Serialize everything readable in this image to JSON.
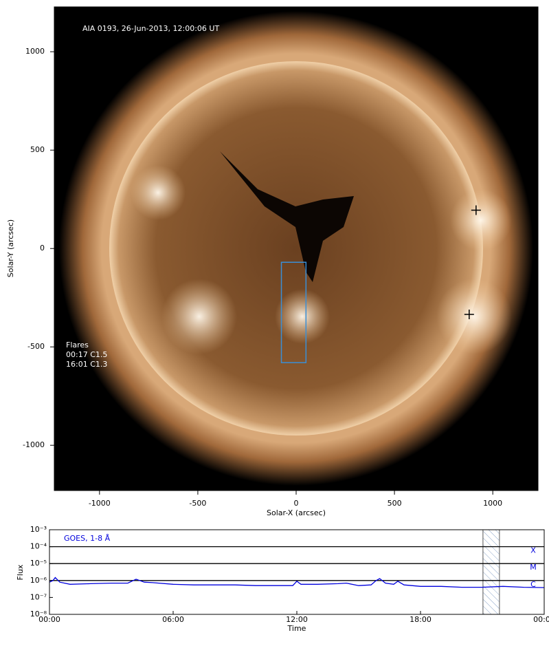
{
  "chart_data": [
    {
      "type": "image",
      "title": "AIA 0193, 26-Jun-2013, 12:00:06 UT",
      "xlabel": "Solar-X (arcsec)",
      "ylabel": "Solar-Y (arcsec)",
      "xlim": [
        -1230,
        1230
      ],
      "ylim": [
        -1230,
        1228
      ],
      "xticks": [
        -1000,
        -500,
        0,
        500,
        1000
      ],
      "yticks": [
        -1000,
        -500,
        0,
        500,
        1000
      ],
      "annotations": [
        "Flares",
        "00:17 C1.5",
        "16:01 C1.3"
      ],
      "box": {
        "x": [
          -75,
          50
        ],
        "y": [
          -580,
          -70
        ],
        "color": "#3a8fd6"
      },
      "markers": {
        "x": [
          915,
          880
        ],
        "y": [
          195,
          -335
        ]
      }
    },
    {
      "type": "line",
      "title": "GOES, 1-8 Å",
      "xlabel": "Time",
      "ylabel": "Flux",
      "log_y": true,
      "xlim": [
        0,
        24
      ],
      "ylim": [
        1e-08,
        0.001
      ],
      "xticks": [
        {
          "value": 0,
          "label": "00:00"
        },
        {
          "value": 6,
          "label": "06:00"
        },
        {
          "value": 12,
          "label": "12:00"
        },
        {
          "value": 18,
          "label": "18:00"
        },
        {
          "value": 24,
          "label": "00:00"
        }
      ],
      "yticks": [
        {
          "value": 1e-08,
          "label": "10⁻⁸"
        },
        {
          "value": 1e-07,
          "label": "10⁻⁷"
        },
        {
          "value": 1e-06,
          "label": "10⁻⁶"
        },
        {
          "value": 1e-05,
          "label": "10⁻⁵"
        },
        {
          "value": 0.0001,
          "label": "10⁻⁴"
        },
        {
          "value": 0.001,
          "label": "10⁻³"
        }
      ],
      "class_lines": [
        {
          "value": 0.0001,
          "label": "X"
        },
        {
          "value": 1e-05,
          "label": "M"
        },
        {
          "value": 1e-06,
          "label": "C"
        }
      ],
      "highlight": [
        21.03,
        21.83
      ],
      "series": [
        {
          "color": "#0000dd",
          "x": [
            0,
            0.17,
            0.28,
            0.5,
            1,
            2,
            3,
            3.8,
            4.2,
            4.6,
            5,
            6,
            7,
            8,
            9,
            10,
            11,
            11.8,
            12,
            12.2,
            13,
            14,
            14.4,
            15,
            15.6,
            15.85,
            16.02,
            16.3,
            16.7,
            16.9,
            17.2,
            18,
            19,
            20,
            21,
            22,
            23,
            24
          ],
          "values": [
            8e-07,
            1e-06,
            1.5e-06,
            8e-07,
            6e-07,
            6.5e-07,
            7e-07,
            7e-07,
            1.2e-06,
            8e-07,
            7.5e-07,
            6e-07,
            5.5e-07,
            5.5e-07,
            5.5e-07,
            5e-07,
            5e-07,
            5e-07,
            9e-07,
            6e-07,
            6e-07,
            6.5e-07,
            7e-07,
            5e-07,
            5.5e-07,
            1e-06,
            1.3e-06,
            7e-07,
            6e-07,
            9e-07,
            5.5e-07,
            4.5e-07,
            4.5e-07,
            4e-07,
            4e-07,
            4.5e-07,
            4e-07,
            3.8e-07
          ]
        }
      ]
    }
  ]
}
